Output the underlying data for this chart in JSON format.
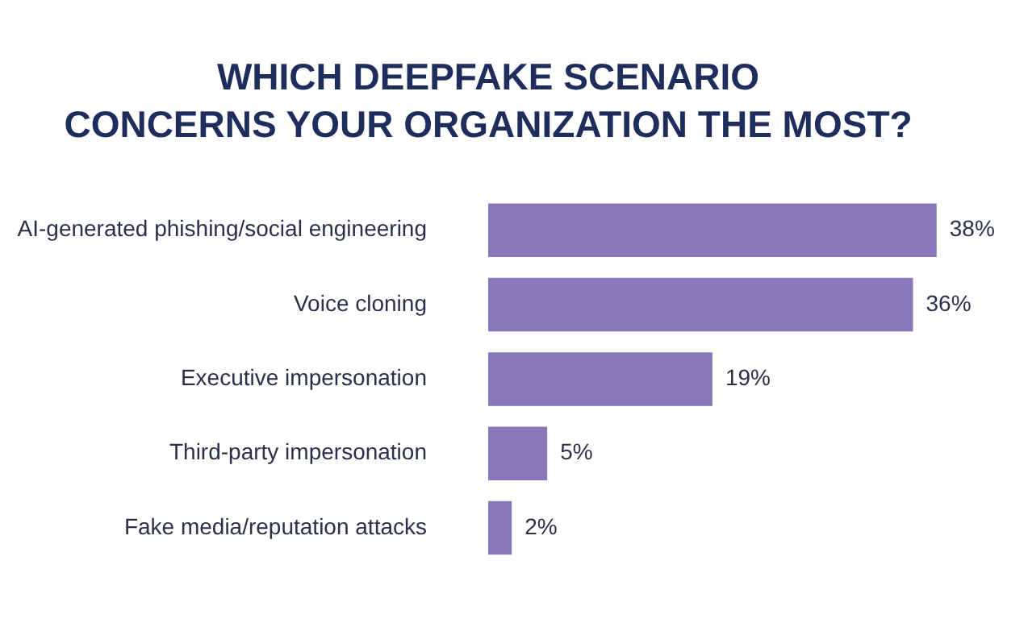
{
  "chart_data": {
    "type": "bar",
    "orientation": "horizontal",
    "title": "WHICH DEEPFAKE SCENARIO\nCONCERNS YOUR ORGANIZATION THE MOST?",
    "categories": [
      "AI-generated phishing/social engineering",
      "Voice cloning",
      "Executive impersonation",
      "Third-party impersonation",
      "Fake media/reputation attacks"
    ],
    "values": [
      38,
      36,
      19,
      5,
      2
    ],
    "value_labels": [
      "38%",
      "36%",
      "19%",
      "5%",
      "2%"
    ],
    "color": "#8877b9",
    "grid": false,
    "legend": false
  }
}
